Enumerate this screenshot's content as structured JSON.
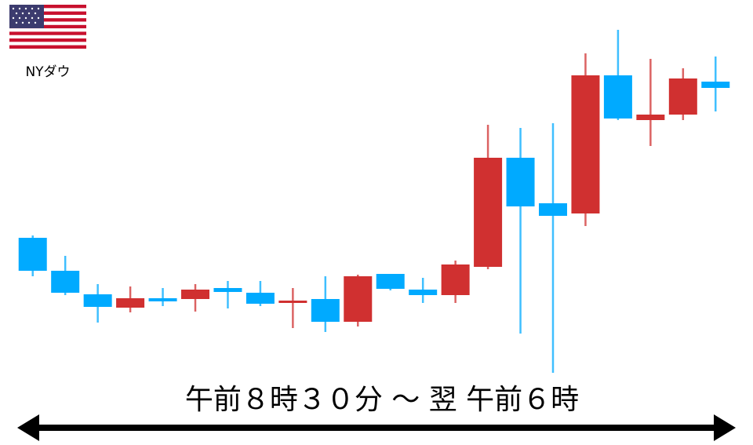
{
  "chart_data": {
    "type": "candlestick",
    "label": "NYダウ",
    "annotation": "午前８時３０分 ～ 翌 午前６時",
    "up_color": "#d03030",
    "down_color": "#00aaff",
    "ylim": [
      0,
      470
    ],
    "open": [
      197,
      155,
      125,
      108,
      120,
      119,
      133,
      127,
      114,
      119,
      90,
      151,
      131,
      124,
      160,
      299,
      241,
      228,
      404,
      347,
      354,
      396
    ],
    "high": [
      200,
      174,
      138,
      135,
      133,
      138,
      142,
      142,
      133,
      148,
      150,
      151,
      146,
      168,
      341,
      337,
      343,
      432,
      462,
      425,
      413,
      428
    ],
    "low": [
      148,
      124,
      89,
      102,
      110,
      103,
      107,
      110,
      82,
      77,
      84,
      130,
      114,
      114,
      157,
      75,
      25,
      212,
      347,
      314,
      347,
      358
    ],
    "close": [
      155,
      127,
      109,
      120,
      116,
      131,
      128,
      113,
      117,
      90,
      148,
      132,
      124,
      163,
      299,
      237,
      225,
      404,
      349,
      354,
      400,
      388
    ]
  }
}
